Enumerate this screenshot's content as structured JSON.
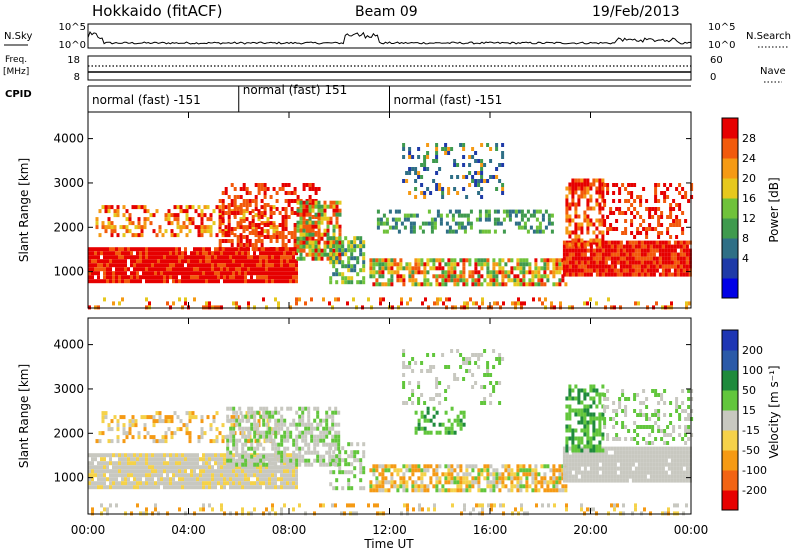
{
  "header": {
    "title": "Hokkaido (fitACF)",
    "beam": "Beam 09",
    "date": "19/Feb/2013"
  },
  "top_panels": {
    "nsky_label": "N.Sky",
    "nsearch_label": "N.Search",
    "nsky_ticks": [
      "10^5",
      "10^0"
    ],
    "nsearch_ticks": [
      "10^5",
      "10^0"
    ],
    "freq_label_1": "Freq.",
    "freq_label_2": "[MHz]",
    "freq_ticks": [
      "18",
      "8"
    ],
    "nave_label": "Nave",
    "nave_ticks": [
      "60",
      "0"
    ],
    "cpid_label": "CPID",
    "cpid_segments": [
      {
        "label": "normal (fast) -151",
        "start_ut": 0,
        "end_ut": 6
      },
      {
        "label": "normal (fast) 151",
        "start_ut": 6,
        "end_ut": 12
      },
      {
        "label": "normal (fast) -151",
        "start_ut": 12,
        "end_ut": 24
      }
    ]
  },
  "chart_data": [
    {
      "type": "heatmap",
      "name": "power",
      "ylabel": "Slant Range [km]",
      "xlim": [
        0,
        24
      ],
      "ylim": [
        180,
        4600
      ],
      "yticks": [
        "1000",
        "2000",
        "3000",
        "4000"
      ],
      "colorbar_label": "Power [dB]",
      "colorbar_ticks": [
        "28",
        "24",
        "20",
        "16",
        "12",
        "8",
        "4"
      ],
      "colors": [
        "#0000e6",
        "#1e3aa8",
        "#2f6f86",
        "#3f9a4e",
        "#6fc23a",
        "#e6c81e",
        "#f59a14",
        "#f25a0c",
        "#e60000"
      ]
    },
    {
      "type": "heatmap",
      "name": "velocity",
      "ylabel": "Slant Range [km]",
      "xlabel": "Time UT",
      "xlim": [
        0,
        24
      ],
      "ylim": [
        180,
        4600
      ],
      "yticks": [
        "1000",
        "2000",
        "3000",
        "4000"
      ],
      "xticks": [
        "00:00",
        "04:00",
        "08:00",
        "12:00",
        "16:00",
        "20:00",
        "00:00"
      ],
      "colorbar_label": "Velocity [m s⁻¹]",
      "colorbar_ticks": [
        "200",
        "100",
        "50",
        "15",
        "-15",
        "-50",
        "-100",
        "-200"
      ],
      "colors": [
        "#1f36b4",
        "#2b5aa8",
        "#1e8a3c",
        "#62c63c",
        "#c8c8c0",
        "#f5d24a",
        "#f59a14",
        "#f26414",
        "#e60000"
      ]
    }
  ]
}
